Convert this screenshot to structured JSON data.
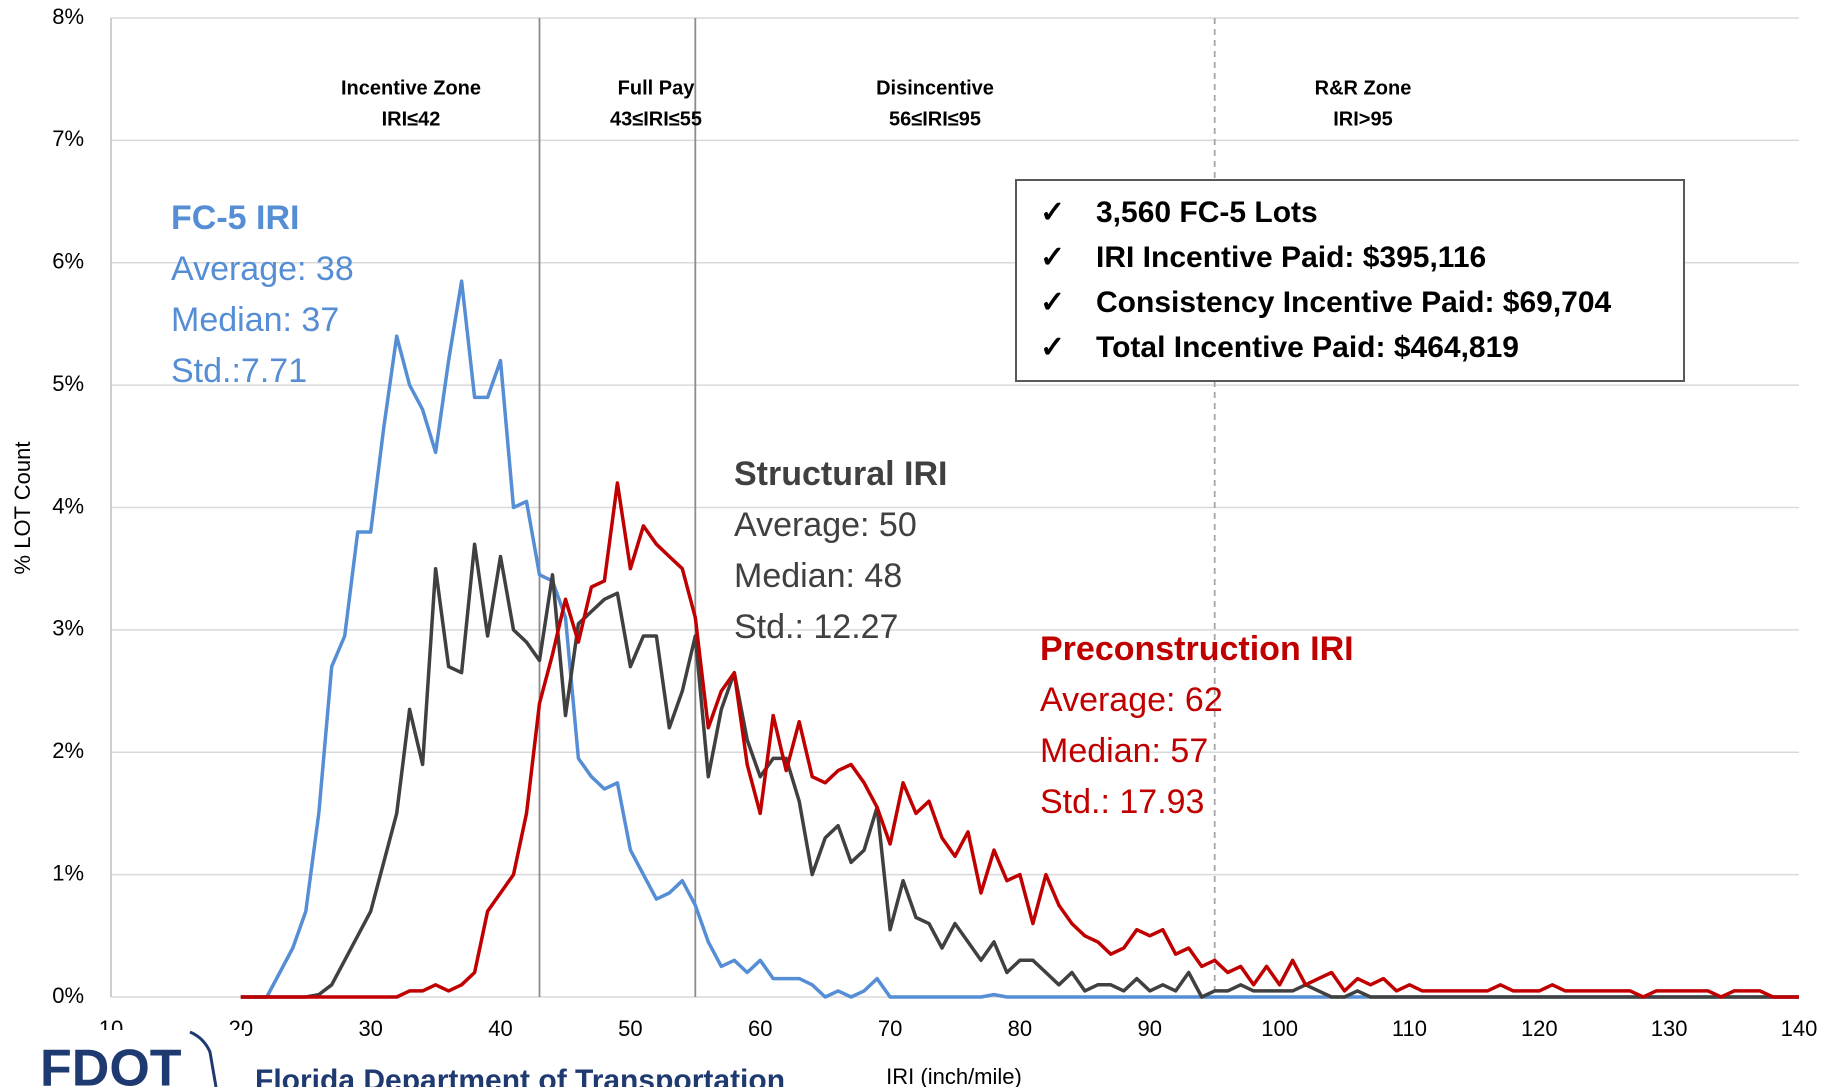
{
  "chart_data": {
    "type": "line",
    "x_label": "IRI (inch/mile)",
    "y_label": "% LOT Count",
    "xlim": [
      10,
      140
    ],
    "xticks": [
      10,
      20,
      30,
      40,
      50,
      60,
      70,
      80,
      90,
      100,
      110,
      120,
      130,
      140
    ],
    "ylim": [
      0,
      8
    ],
    "yticks": [
      {
        "value": 0,
        "label": "0%"
      },
      {
        "value": 1,
        "label": "1%"
      },
      {
        "value": 2,
        "label": "2%"
      },
      {
        "value": 3,
        "label": "3%"
      },
      {
        "value": 4,
        "label": "4%"
      },
      {
        "value": 5,
        "label": "5%"
      },
      {
        "value": 6,
        "label": "6%"
      },
      {
        "value": 7,
        "label": "7%"
      },
      {
        "value": 8,
        "label": "8%"
      }
    ],
    "grid": true,
    "x": [
      20,
      21,
      22,
      23,
      24,
      25,
      26,
      27,
      28,
      29,
      30,
      31,
      32,
      33,
      34,
      35,
      36,
      37,
      38,
      39,
      40,
      41,
      42,
      43,
      44,
      45,
      46,
      47,
      48,
      49,
      50,
      51,
      52,
      53,
      54,
      55,
      56,
      57,
      58,
      59,
      60,
      61,
      62,
      63,
      64,
      65,
      66,
      67,
      68,
      69,
      70,
      71,
      72,
      73,
      74,
      75,
      76,
      77,
      78,
      79,
      80,
      81,
      82,
      83,
      84,
      85,
      86,
      87,
      88,
      89,
      90,
      91,
      92,
      93,
      94,
      95,
      96,
      97,
      98,
      99,
      100,
      101,
      102,
      103,
      104,
      105,
      106,
      107,
      108,
      109,
      110,
      111,
      112,
      113,
      114,
      115,
      116,
      117,
      118,
      119,
      120,
      121,
      122,
      123,
      124,
      125,
      126,
      127,
      128,
      129,
      130,
      131,
      132,
      133,
      134,
      135,
      136,
      137,
      138,
      139,
      140
    ],
    "series": [
      {
        "name": "FC-5 IRI",
        "color": "#558ed5",
        "values": [
          0,
          0,
          0,
          0.2,
          0.4,
          0.7,
          1.5,
          2.7,
          2.95,
          3.8,
          3.8,
          4.65,
          5.4,
          5.0,
          4.8,
          4.45,
          5.2,
          5.85,
          4.9,
          4.9,
          5.2,
          4.0,
          4.05,
          3.45,
          3.4,
          3.1,
          1.95,
          1.8,
          1.7,
          1.75,
          1.2,
          1.0,
          0.8,
          0.85,
          0.95,
          0.75,
          0.45,
          0.25,
          0.3,
          0.2,
          0.3,
          0.15,
          0.15,
          0.15,
          0.1,
          0,
          0.05,
          0,
          0.05,
          0.15,
          0,
          0,
          0,
          0,
          0,
          0,
          0,
          0,
          0.02,
          0,
          0,
          0,
          0,
          0,
          0,
          0,
          0,
          0,
          0,
          0,
          0,
          0,
          0,
          0,
          0,
          0,
          0,
          0,
          0,
          0,
          0,
          0,
          0,
          0,
          0,
          0,
          0,
          0,
          0,
          0,
          0,
          0,
          0,
          0,
          0,
          0,
          0,
          0,
          0,
          0,
          0,
          0,
          0,
          0,
          0,
          0,
          0,
          0,
          0,
          0,
          0,
          0,
          0,
          0,
          0,
          0,
          0,
          0,
          0,
          0,
          0
        ]
      },
      {
        "name": "Structural IRI",
        "color": "#404040",
        "values": [
          0,
          0,
          0,
          0,
          0,
          0,
          0.02,
          0.1,
          0.3,
          0.5,
          0.7,
          1.1,
          1.5,
          2.35,
          1.9,
          3.5,
          2.7,
          2.65,
          3.7,
          2.95,
          3.6,
          3.0,
          2.9,
          2.75,
          3.45,
          2.3,
          3.05,
          3.15,
          3.25,
          3.3,
          2.7,
          2.95,
          2.95,
          2.2,
          2.5,
          2.95,
          1.8,
          2.35,
          2.65,
          2.1,
          1.8,
          1.95,
          1.95,
          1.6,
          1.0,
          1.3,
          1.4,
          1.1,
          1.2,
          1.55,
          0.55,
          0.95,
          0.65,
          0.6,
          0.4,
          0.6,
          0.45,
          0.3,
          0.45,
          0.2,
          0.3,
          0.3,
          0.2,
          0.1,
          0.2,
          0.05,
          0.1,
          0.1,
          0.05,
          0.15,
          0.05,
          0.1,
          0.05,
          0.2,
          0,
          0.05,
          0.05,
          0.1,
          0.05,
          0.05,
          0.05,
          0.05,
          0.1,
          0.05,
          0,
          0,
          0.05,
          0,
          0,
          0,
          0,
          0,
          0,
          0,
          0,
          0,
          0,
          0,
          0,
          0,
          0,
          0,
          0,
          0,
          0,
          0,
          0,
          0,
          0,
          0,
          0,
          0,
          0,
          0,
          0,
          0,
          0,
          0,
          0,
          0,
          0
        ]
      },
      {
        "name": "Preconstruction IRI",
        "color": "#c00000",
        "values": [
          0,
          0,
          0,
          0,
          0,
          0,
          0,
          0,
          0,
          0,
          0,
          0,
          0,
          0.05,
          0.05,
          0.1,
          0.05,
          0.1,
          0.2,
          0.7,
          0.85,
          1.0,
          1.5,
          2.4,
          2.8,
          3.25,
          2.9,
          3.35,
          3.4,
          4.2,
          3.5,
          3.85,
          3.7,
          3.6,
          3.5,
          3.1,
          2.2,
          2.5,
          2.65,
          1.9,
          1.5,
          2.3,
          1.85,
          2.25,
          1.8,
          1.75,
          1.85,
          1.9,
          1.75,
          1.55,
          1.25,
          1.75,
          1.5,
          1.6,
          1.3,
          1.15,
          1.35,
          0.85,
          1.2,
          0.95,
          1.0,
          0.6,
          1.0,
          0.75,
          0.6,
          0.5,
          0.45,
          0.35,
          0.4,
          0.55,
          0.5,
          0.55,
          0.35,
          0.4,
          0.25,
          0.3,
          0.2,
          0.25,
          0.1,
          0.25,
          0.1,
          0.3,
          0.1,
          0.15,
          0.2,
          0.05,
          0.15,
          0.1,
          0.15,
          0.05,
          0.1,
          0.05,
          0.05,
          0.05,
          0.05,
          0.05,
          0.05,
          0.1,
          0.05,
          0.05,
          0.05,
          0.1,
          0.05,
          0.05,
          0.05,
          0.05,
          0.05,
          0.05,
          0,
          0.05,
          0.05,
          0.05,
          0.05,
          0.05,
          0,
          0.05,
          0.05,
          0.05,
          0,
          0,
          0
        ]
      }
    ],
    "boundaries": [
      {
        "value": 43,
        "dashed": false
      },
      {
        "value": 55,
        "dashed": false
      },
      {
        "value": 95,
        "dashed": true
      }
    ],
    "zones": [
      {
        "name": "Incentive Zone",
        "range": "IRI≤42"
      },
      {
        "name": "Full Pay",
        "range": "43≤IRI≤55"
      },
      {
        "name": "Disincentive",
        "range": "56≤IRI≤95"
      },
      {
        "name": "R&R Zone",
        "range": "IRI>95"
      }
    ],
    "annotations": [
      {
        "title": "FC-5 IRI",
        "lines": [
          "Average: 38",
          "Median: 37",
          "Std.:7.71"
        ]
      },
      {
        "title": "Structural IRI",
        "lines": [
          "Average: 50",
          "Median: 48",
          "Std.: 12.27"
        ]
      },
      {
        "title": "Preconstruction IRI",
        "lines": [
          "Average: 62",
          "Median: 57",
          "Std.: 17.93"
        ]
      }
    ],
    "summary_box": {
      "bullet": "✓",
      "items": [
        "3,560 FC-5 Lots",
        "IRI Incentive Paid: $395,116",
        "Consistency Incentive Paid: $69,704",
        "Total Incentive Paid: $464,819"
      ]
    }
  },
  "footer": {
    "logo": "FDOT",
    "agency": "Florida Department of Transportation"
  }
}
